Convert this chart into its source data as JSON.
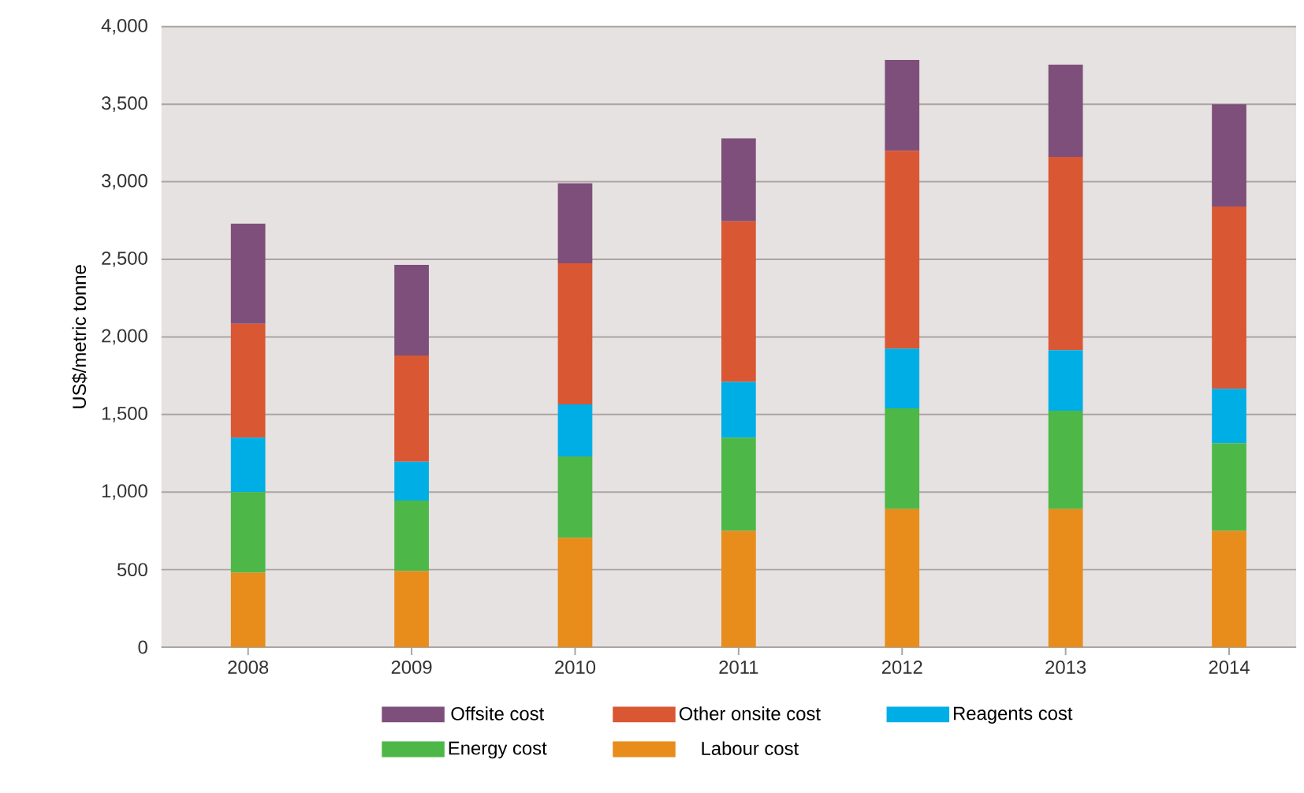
{
  "chart_data": {
    "type": "bar",
    "stacked": true,
    "ylabel": "US$/metric tonne",
    "categories": [
      "2008",
      "2009",
      "2010",
      "2011",
      "2012",
      "2013",
      "2014"
    ],
    "series": [
      {
        "name": "Labour cost",
        "color": "#e88c1c",
        "values": [
          480,
          490,
          705,
          750,
          890,
          890,
          750
        ]
      },
      {
        "name": "Energy cost",
        "color": "#4db848",
        "values": [
          520,
          455,
          525,
          600,
          650,
          635,
          565
        ]
      },
      {
        "name": "Reagents cost",
        "color": "#00aee6",
        "values": [
          350,
          250,
          335,
          360,
          385,
          390,
          350
        ]
      },
      {
        "name": "Other onsite cost",
        "color": "#d95733",
        "values": [
          735,
          685,
          910,
          1035,
          1275,
          1245,
          1175
        ]
      },
      {
        "name": "Offsite cost",
        "color": "#7e4f7a",
        "values": [
          645,
          585,
          515,
          535,
          585,
          595,
          660
        ]
      }
    ],
    "ylim": [
      0,
      4000
    ],
    "yticks": [
      0,
      500,
      {
        "value": 1000,
        "label": "1,000"
      },
      {
        "value": 1500,
        "label": "1,500"
      },
      {
        "value": 2000,
        "label": "2,000"
      },
      {
        "value": 2500,
        "label": "2,500"
      },
      {
        "value": 3000,
        "label": "3,000"
      },
      {
        "value": 3500,
        "label": "3,500"
      },
      {
        "value": 4000,
        "label": "4,000"
      }
    ],
    "grid": "y",
    "legend": "bottom"
  }
}
